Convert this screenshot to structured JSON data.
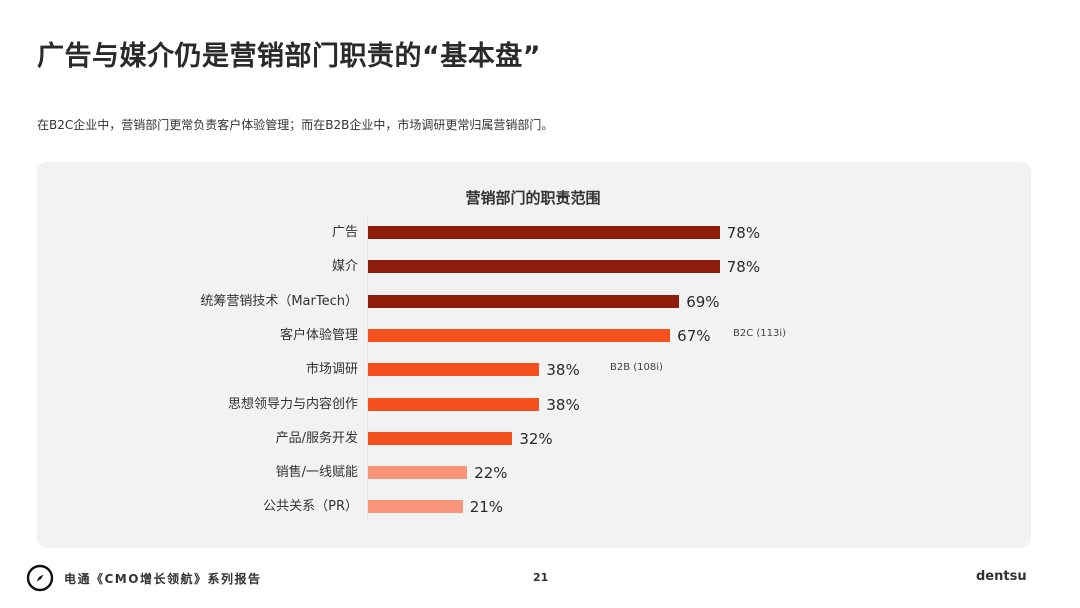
{
  "header": {
    "title": "广告与媒介仍是营销部门职责的“基本盘”",
    "subtitle": "在B2C企业中，营销部门更常负责客户体验管理；而在B2B企业中，市场调研更常归属营销部门。"
  },
  "colors": {
    "dark_red": "#8f1d0c",
    "orange": "#f4511f",
    "salmon": "#f79479",
    "panel_bg": "#f2f2f2"
  },
  "chart_data": {
    "type": "bar",
    "orientation": "horizontal",
    "title": "营销部门的职责范围",
    "xlabel": "",
    "ylabel": "",
    "unit": "%",
    "grid": false,
    "categories": [
      "广告",
      "媒介",
      "统筹营销技术（MarTech）",
      "客户体验管理",
      "市场调研",
      "思想领导力与内容创作",
      "产品/服务开发",
      "销售/一线赋能",
      "公共关系（PR）"
    ],
    "values": [
      78,
      78,
      69,
      67,
      38,
      38,
      32,
      22,
      21
    ],
    "value_labels": [
      "78%",
      "78%",
      "69%",
      "67%",
      "38%",
      "38%",
      "32%",
      "22%",
      "21%"
    ],
    "bar_colors": [
      "#8f1d0c",
      "#8f1d0c",
      "#8f1d0c",
      "#f4511f",
      "#f4511f",
      "#f4511f",
      "#f4511f",
      "#f79479",
      "#f79479"
    ],
    "annotations": [
      {
        "category": "客户体验管理",
        "text": "B2C (113i)"
      },
      {
        "category": "市场调研",
        "text": "B2B (108i)"
      }
    ],
    "xlim": [
      0,
      100
    ]
  },
  "footer": {
    "logo_icon": "compass-icon",
    "report_name": "电通《CMO增长领航》系列报告",
    "page_number": "21",
    "brand": "dentsu"
  }
}
